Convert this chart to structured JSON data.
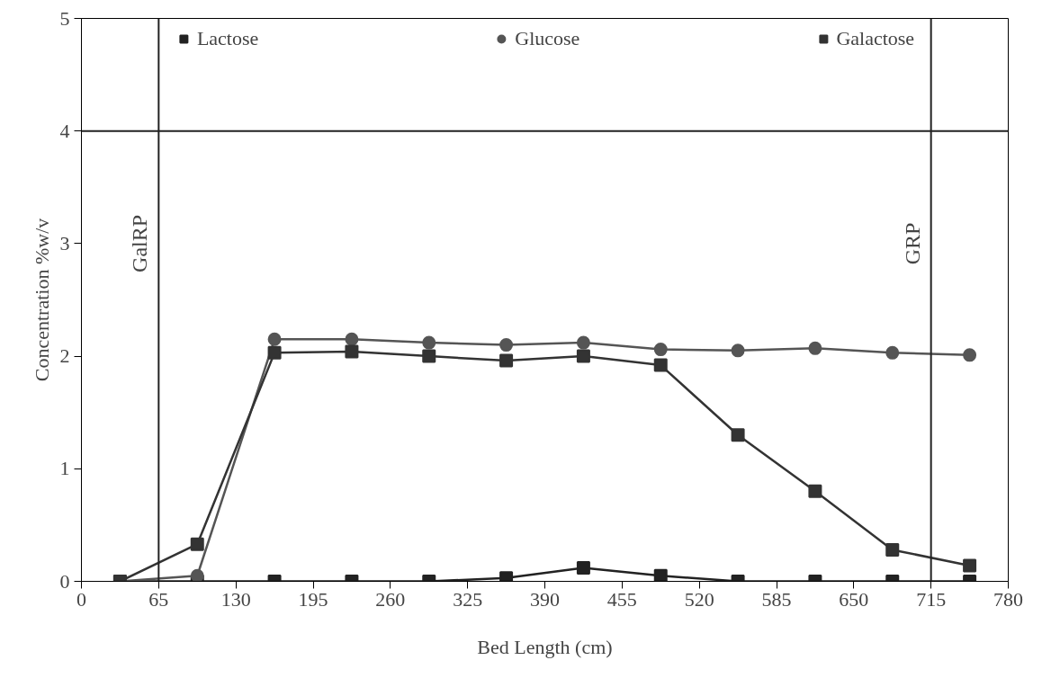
{
  "chart_data": {
    "type": "line",
    "xlabel": "Bed Length (cm)",
    "ylabel": "Concentration %w/v",
    "x": [
      32.5,
      97.5,
      162.5,
      227.5,
      292.5,
      357.5,
      422.5,
      487.5,
      552.5,
      617.5,
      682.5,
      747.5
    ],
    "series": [
      {
        "name": "Lactose",
        "color": "#222222",
        "marker": "square",
        "values": [
          0,
          0,
          0,
          0,
          0,
          0.03,
          0.12,
          0.05,
          0,
          0,
          0,
          0
        ]
      },
      {
        "name": "Glucose",
        "color": "#555555",
        "marker": "circle",
        "values": [
          0,
          0.05,
          2.15,
          2.15,
          2.12,
          2.1,
          2.12,
          2.06,
          2.05,
          2.07,
          2.03,
          2.01
        ]
      },
      {
        "name": "Galactose",
        "color": "#333333",
        "marker": "square",
        "values": [
          0,
          0.33,
          2.03,
          2.04,
          2.0,
          1.96,
          2.0,
          1.92,
          1.3,
          0.8,
          0.28,
          0.14
        ]
      }
    ],
    "xlim": [
      0,
      780
    ],
    "xticks": [
      0,
      65,
      130,
      195,
      260,
      325,
      390,
      455,
      520,
      585,
      650,
      715,
      780
    ],
    "ylim": [
      0,
      5
    ],
    "yticks": [
      0,
      1,
      2,
      3,
      4,
      5
    ],
    "ref_lines": [
      {
        "axis": "x",
        "value": 65,
        "label": "GalRP"
      },
      {
        "axis": "x",
        "value": 715,
        "label": "GRP"
      },
      {
        "axis": "y",
        "value": 4,
        "label": null
      }
    ],
    "grid": false,
    "legend": "top",
    "line_style": "solid"
  }
}
